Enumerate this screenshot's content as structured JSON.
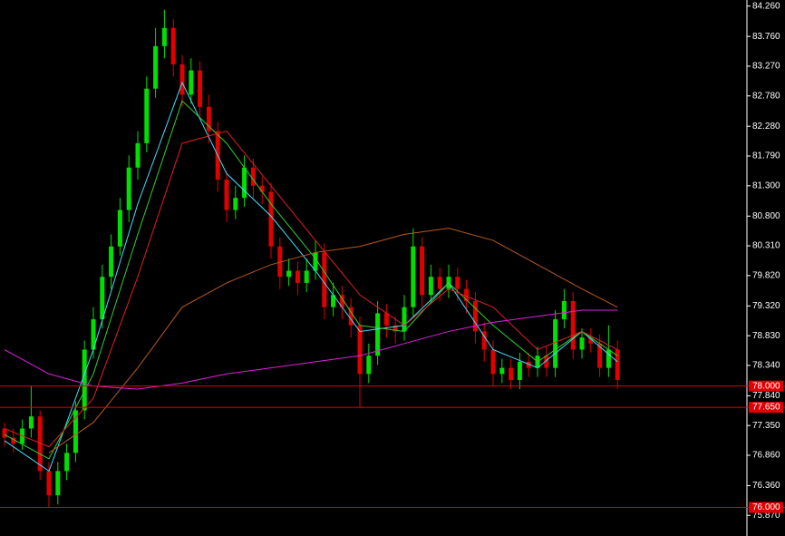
{
  "chart_data": {
    "type": "candlestick",
    "up_color": "#00e000",
    "down_color": "#e00000",
    "ylim": [
      75.53,
      84.36
    ],
    "yticks": [
      {
        "value": 84.26,
        "label": "84.260"
      },
      {
        "value": 83.76,
        "label": "83.760"
      },
      {
        "value": 83.27,
        "label": "83.270"
      },
      {
        "value": 82.78,
        "label": "82.780"
      },
      {
        "value": 82.28,
        "label": "82.280"
      },
      {
        "value": 81.79,
        "label": "81.790"
      },
      {
        "value": 81.3,
        "label": "81.300"
      },
      {
        "value": 80.8,
        "label": "80.800"
      },
      {
        "value": 80.31,
        "label": "80.310"
      },
      {
        "value": 79.82,
        "label": "79.820"
      },
      {
        "value": 79.32,
        "label": "79.320"
      },
      {
        "value": 78.83,
        "label": "78.830"
      },
      {
        "value": 78.34,
        "label": "78.340"
      },
      {
        "value": 77.84,
        "label": "77.840"
      },
      {
        "value": 77.35,
        "label": "77.350"
      },
      {
        "value": 76.86,
        "label": "76.860"
      },
      {
        "value": 76.36,
        "label": "76.360"
      },
      {
        "value": 75.87,
        "label": "75.870"
      }
    ],
    "levels": [
      {
        "value": 78.0,
        "label": "78.000"
      },
      {
        "value": 77.65,
        "label": "77.650"
      },
      {
        "value": 76.0,
        "label": "76.000"
      }
    ],
    "level_color": "#e00000",
    "ohlc": [
      [
        77.3,
        77.4,
        77.0,
        77.15
      ],
      [
        77.15,
        77.3,
        76.9,
        77.05
      ],
      [
        77.05,
        77.45,
        76.95,
        77.3
      ],
      [
        77.3,
        78.0,
        77.15,
        77.5
      ],
      [
        77.5,
        77.6,
        76.45,
        76.6
      ],
      [
        76.6,
        76.75,
        76.0,
        76.2
      ],
      [
        76.2,
        76.75,
        76.05,
        76.6
      ],
      [
        76.6,
        77.05,
        76.45,
        76.9
      ],
      [
        76.9,
        77.75,
        76.75,
        77.6
      ],
      [
        77.6,
        78.75,
        77.45,
        78.6
      ],
      [
        78.6,
        79.3,
        78.45,
        79.1
      ],
      [
        79.1,
        80.0,
        78.95,
        79.8
      ],
      [
        79.8,
        80.5,
        79.6,
        80.3
      ],
      [
        80.3,
        81.1,
        80.15,
        80.9
      ],
      [
        80.9,
        81.8,
        80.7,
        81.6
      ],
      [
        81.6,
        82.2,
        81.4,
        82.0
      ],
      [
        82.0,
        83.1,
        81.85,
        82.9
      ],
      [
        82.9,
        83.9,
        82.75,
        83.6
      ],
      [
        83.6,
        84.2,
        83.4,
        83.9
      ],
      [
        83.9,
        84.05,
        83.1,
        83.3
      ],
      [
        83.3,
        83.45,
        82.6,
        82.8
      ],
      [
        82.8,
        83.4,
        82.65,
        83.2
      ],
      [
        83.2,
        83.35,
        82.4,
        82.6
      ],
      [
        82.6,
        82.8,
        82.0,
        82.2
      ],
      [
        82.2,
        82.35,
        81.2,
        81.4
      ],
      [
        81.4,
        81.55,
        80.7,
        80.9
      ],
      [
        80.9,
        81.3,
        80.75,
        81.1
      ],
      [
        81.1,
        81.8,
        80.95,
        81.6
      ],
      [
        81.6,
        81.75,
        81.1,
        81.3
      ],
      [
        81.3,
        81.45,
        81.0,
        81.2
      ],
      [
        81.2,
        81.35,
        80.1,
        80.3
      ],
      [
        80.3,
        80.45,
        79.6,
        79.8
      ],
      [
        79.8,
        80.1,
        79.65,
        79.9
      ],
      [
        79.9,
        80.05,
        79.5,
        79.7
      ],
      [
        79.7,
        80.1,
        79.55,
        79.9
      ],
      [
        79.9,
        80.4,
        79.75,
        80.2
      ],
      [
        80.2,
        80.35,
        79.1,
        79.3
      ],
      [
        79.3,
        79.7,
        79.15,
        79.5
      ],
      [
        79.5,
        79.65,
        79.1,
        79.3
      ],
      [
        79.3,
        79.45,
        78.8,
        79.0
      ],
      [
        79.0,
        79.15,
        77.65,
        78.2
      ],
      [
        78.2,
        78.7,
        78.05,
        78.5
      ],
      [
        78.5,
        79.4,
        78.35,
        79.2
      ],
      [
        79.2,
        79.35,
        78.8,
        79.0
      ],
      [
        79.0,
        79.15,
        78.7,
        78.9
      ],
      [
        78.9,
        79.5,
        78.75,
        79.3
      ],
      [
        79.3,
        80.6,
        79.15,
        80.3
      ],
      [
        80.3,
        80.45,
        79.3,
        79.5
      ],
      [
        79.5,
        80.0,
        79.35,
        79.8
      ],
      [
        79.8,
        79.95,
        79.4,
        79.6
      ],
      [
        79.6,
        80.0,
        79.45,
        79.8
      ],
      [
        79.8,
        79.95,
        79.4,
        79.6
      ],
      [
        79.6,
        79.75,
        79.2,
        79.4
      ],
      [
        79.4,
        79.55,
        78.7,
        78.9
      ],
      [
        78.9,
        79.05,
        78.4,
        78.6
      ],
      [
        78.6,
        78.75,
        78.0,
        78.2
      ],
      [
        78.2,
        78.45,
        78.05,
        78.3
      ],
      [
        78.3,
        78.45,
        77.95,
        78.1
      ],
      [
        78.1,
        78.55,
        77.95,
        78.4
      ],
      [
        78.4,
        78.55,
        78.15,
        78.3
      ],
      [
        78.3,
        78.65,
        78.15,
        78.5
      ],
      [
        78.5,
        78.65,
        78.15,
        78.3
      ],
      [
        78.3,
        79.25,
        78.15,
        79.1
      ],
      [
        79.1,
        79.6,
        78.95,
        79.4
      ],
      [
        79.4,
        79.55,
        78.45,
        78.6
      ],
      [
        78.6,
        78.95,
        78.45,
        78.8
      ],
      [
        78.8,
        78.95,
        78.55,
        78.7
      ],
      [
        78.7,
        78.85,
        78.15,
        78.3
      ],
      [
        78.3,
        79.0,
        78.15,
        78.6
      ],
      [
        78.6,
        78.75,
        77.95,
        78.1
      ]
    ],
    "x": [
      0,
      5,
      10,
      15,
      20,
      25,
      30,
      35,
      40,
      45,
      50,
      55,
      60,
      65,
      69
    ],
    "series": [
      {
        "color": "#40e0ff",
        "values": [
          77.1,
          76.6,
          78.6,
          81.0,
          83.0,
          81.5,
          80.8,
          79.9,
          78.9,
          79.0,
          79.7,
          78.6,
          78.3,
          78.9,
          78.4
        ]
      },
      {
        "color": "#30d030",
        "values": [
          77.2,
          76.8,
          78.2,
          80.5,
          82.7,
          82.0,
          81.0,
          80.1,
          79.0,
          78.9,
          79.7,
          79.0,
          78.4,
          78.9,
          78.5
        ]
      },
      {
        "color": "#e02020",
        "values": [
          77.3,
          77.0,
          77.8,
          79.8,
          82.0,
          82.2,
          81.3,
          80.4,
          79.5,
          79.0,
          79.6,
          79.3,
          78.6,
          78.9,
          78.6
        ]
      },
      {
        "color": "#b85a20",
        "values": [
          null,
          76.9,
          77.4,
          78.3,
          79.3,
          79.7,
          80.0,
          80.2,
          80.3,
          80.5,
          80.6,
          80.4,
          80.0,
          79.6,
          79.3
        ]
      },
      {
        "color": "#e020e0",
        "values": [
          78.6,
          78.2,
          78.0,
          77.95,
          78.05,
          78.2,
          78.3,
          78.4,
          78.5,
          78.7,
          78.9,
          79.05,
          79.15,
          79.25,
          79.25
        ]
      }
    ]
  }
}
